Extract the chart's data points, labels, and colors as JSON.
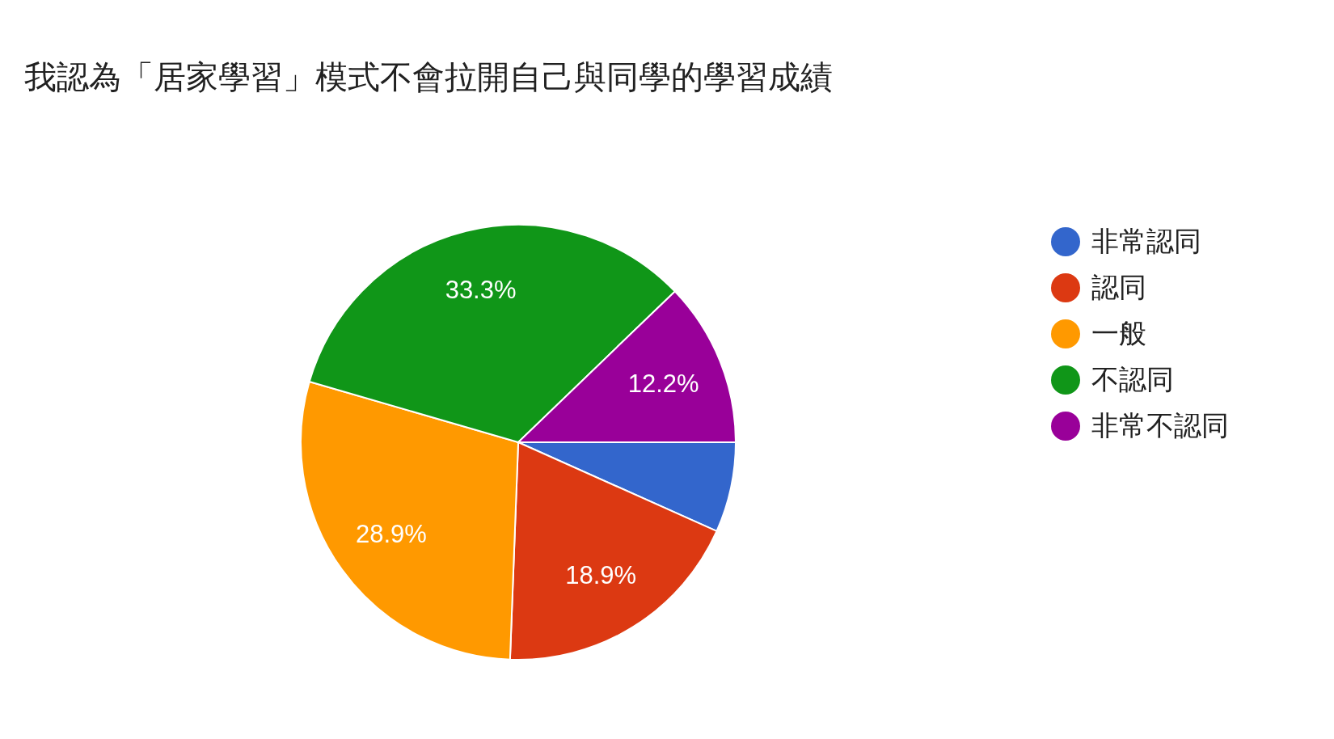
{
  "chart_data": {
    "type": "pie",
    "title": "我認為「居家學習」模式不會拉開自己與同學的學習成績",
    "categories": [
      "非常認同",
      "認同",
      "一般",
      "不認同",
      "非常不認同"
    ],
    "values": [
      6.7,
      18.9,
      28.9,
      33.3,
      12.2
    ],
    "colors": [
      "#3366cc",
      "#dc3912",
      "#ff9900",
      "#109618",
      "#990099"
    ],
    "value_labels": [
      null,
      "18.9%",
      "28.9%",
      "33.3%",
      "12.2%"
    ],
    "legend": "right"
  }
}
